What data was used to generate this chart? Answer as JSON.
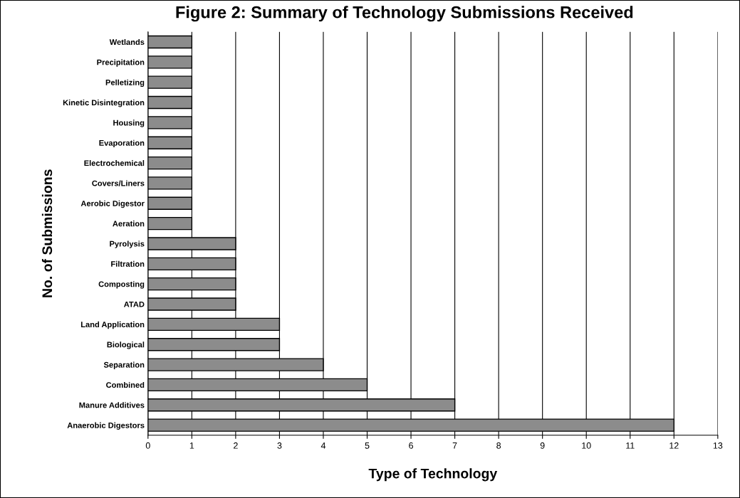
{
  "chart_data": {
    "type": "bar",
    "orientation": "horizontal",
    "title": "Figure 2: Summary of Technology Submissions Received",
    "xlabel": "Type of Technology",
    "ylabel": "No. of Submissions",
    "categories": [
      "Wetlands",
      "Precipitation",
      "Pelletizing",
      "Kinetic Disintegration",
      "Housing",
      "Evaporation",
      "Electrochemical",
      "Covers/Liners",
      "Aerobic Digestor",
      "Aeration",
      "Pyrolysis",
      "Filtration",
      "Composting",
      "ATAD",
      "Land Application",
      "Biological",
      "Separation",
      "Combined",
      "Manure Additives",
      "Anaerobic Digestors"
    ],
    "values": [
      1,
      1,
      1,
      1,
      1,
      1,
      1,
      1,
      1,
      1,
      2,
      2,
      2,
      2,
      3,
      3,
      4,
      5,
      7,
      12
    ],
    "color": "#8c8c8c",
    "xlim": [
      0,
      13
    ],
    "xticks": [
      0,
      1,
      2,
      3,
      4,
      5,
      6,
      7,
      8,
      9,
      10,
      11,
      12,
      13
    ],
    "grid": "x"
  }
}
